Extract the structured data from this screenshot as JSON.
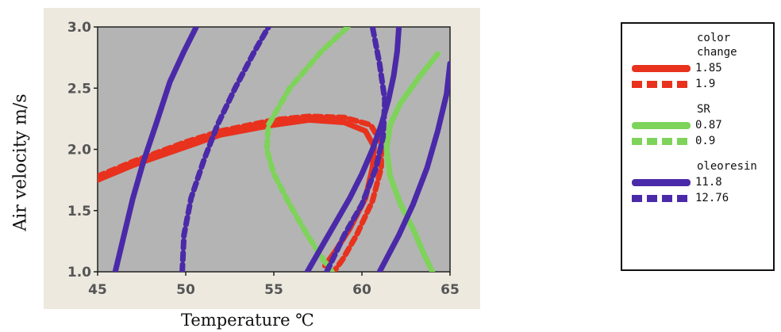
{
  "colors": {
    "plot_background": "#b4b4b4",
    "frame_background": "#ede9df",
    "color_change": "#e8321e",
    "sr": "#7ed35a",
    "oleoresin": "#4a2aa8"
  },
  "chart_data": {
    "type": "line",
    "title": "",
    "xlabel": "Temperature ℃",
    "ylabel": "Air velocity m/s",
    "xlim": [
      45,
      65
    ],
    "ylim": [
      1.0,
      3.0
    ],
    "xticks": [
      "45",
      "50",
      "55",
      "60",
      "65"
    ],
    "yticks": [
      "1.0",
      "1.5",
      "2.0",
      "2.5",
      "3.0"
    ],
    "grid": false,
    "legend_position": "right",
    "legend_groups": [
      {
        "title": "color change",
        "title_lines": [
          "color",
          "change"
        ]
      },
      {
        "title": "SR",
        "title_lines": [
          "SR"
        ]
      },
      {
        "title": "oleoresin",
        "title_lines": [
          "oleoresin"
        ]
      }
    ],
    "series": [
      {
        "name": "1.85",
        "group": "color change",
        "style": "solid",
        "color": "#e8321e",
        "points": [
          [
            45.0,
            1.75
          ],
          [
            47,
            1.87
          ],
          [
            50,
            2.02
          ],
          [
            52,
            2.12
          ],
          [
            55,
            2.2
          ],
          [
            57,
            2.24
          ],
          [
            59,
            2.22
          ],
          [
            60.2,
            2.15
          ],
          [
            60.7,
            2.02
          ],
          [
            60.6,
            1.85
          ],
          [
            60.2,
            1.6
          ],
          [
            59.3,
            1.35
          ],
          [
            58.5,
            1.17
          ],
          [
            57.9,
            1.05
          ]
        ]
      },
      {
        "name": "1.9",
        "group": "color change",
        "style": "dashed",
        "color": "#e8321e",
        "points": [
          [
            45.0,
            1.78
          ],
          [
            47,
            1.9
          ],
          [
            50,
            2.06
          ],
          [
            52,
            2.15
          ],
          [
            55,
            2.24
          ],
          [
            57,
            2.27
          ],
          [
            59,
            2.26
          ],
          [
            60.5,
            2.2
          ],
          [
            61.1,
            2.05
          ],
          [
            61.1,
            1.85
          ],
          [
            60.6,
            1.58
          ],
          [
            59.7,
            1.3
          ],
          [
            58.9,
            1.1
          ],
          [
            58.4,
            1.0
          ]
        ]
      },
      {
        "name": "0.87",
        "group": "SR",
        "style": "solid",
        "color": "#7ed35a",
        "points": [
          [
            64.3,
            2.78
          ],
          [
            63.3,
            2.6
          ],
          [
            62.2,
            2.38
          ],
          [
            61.6,
            2.2
          ],
          [
            61.4,
            2.0
          ],
          [
            61.6,
            1.78
          ],
          [
            62.2,
            1.55
          ],
          [
            62.9,
            1.35
          ],
          [
            63.5,
            1.15
          ],
          [
            64.0,
            1.0
          ]
        ]
      },
      {
        "name": "0.9",
        "group": "SR",
        "style": "dashed",
        "color": "#7ed35a",
        "points": [
          [
            59.2,
            3.0
          ],
          [
            57.7,
            2.8
          ],
          [
            55.9,
            2.5
          ],
          [
            54.7,
            2.2
          ],
          [
            54.6,
            2.0
          ],
          [
            55.0,
            1.8
          ],
          [
            55.9,
            1.55
          ],
          [
            56.9,
            1.3
          ],
          [
            57.8,
            1.1
          ],
          [
            58.3,
            1.0
          ]
        ]
      },
      {
        "name": "11.8",
        "group": "oleoresin",
        "style": "solid",
        "color": "#4a2aa8",
        "points": [
          [
            46.0,
            1.0
          ],
          [
            46.5,
            1.3
          ],
          [
            47.0,
            1.6
          ],
          [
            47.6,
            1.9
          ],
          [
            48.3,
            2.2
          ],
          [
            49.1,
            2.55
          ],
          [
            49.9,
            2.8
          ],
          [
            50.6,
            3.0
          ]
        ]
      },
      {
        "name": "11.8",
        "group": "oleoresin",
        "style": "solid",
        "color": "#4a2aa8",
        "points": [
          [
            56.9,
            1.0
          ],
          [
            57.7,
            1.2
          ],
          [
            58.5,
            1.4
          ],
          [
            59.3,
            1.6
          ],
          [
            60.0,
            1.8
          ],
          [
            60.6,
            2.0
          ],
          [
            61.1,
            2.2
          ],
          [
            61.5,
            2.4
          ],
          [
            61.8,
            2.6
          ],
          [
            62.0,
            2.8
          ],
          [
            62.1,
            3.0
          ]
        ]
      },
      {
        "name": "11.8",
        "group": "oleoresin",
        "style": "solid",
        "color": "#4a2aa8",
        "points": [
          [
            61.0,
            1.0
          ],
          [
            62.1,
            1.3
          ],
          [
            62.9,
            1.55
          ],
          [
            63.7,
            1.85
          ],
          [
            64.3,
            2.15
          ],
          [
            64.8,
            2.45
          ],
          [
            65.0,
            2.7
          ]
        ]
      },
      {
        "name": "12.76",
        "group": "oleoresin",
        "style": "dashed",
        "color": "#4a2aa8",
        "points": [
          [
            49.8,
            1.0
          ],
          [
            49.9,
            1.3
          ],
          [
            50.3,
            1.6
          ],
          [
            51.0,
            1.9
          ],
          [
            51.8,
            2.2
          ],
          [
            52.8,
            2.5
          ],
          [
            53.9,
            2.8
          ],
          [
            54.7,
            3.0
          ]
        ]
      },
      {
        "name": "12.76",
        "group": "oleoresin",
        "style": "dashed",
        "color": "#4a2aa8",
        "points": [
          [
            58.0,
            1.0
          ],
          [
            59.0,
            1.3
          ],
          [
            60.0,
            1.55
          ],
          [
            60.8,
            1.85
          ],
          [
            61.2,
            2.1
          ],
          [
            61.3,
            2.4
          ],
          [
            61.0,
            2.7
          ],
          [
            60.6,
            3.0
          ]
        ]
      }
    ],
    "legend_items": [
      {
        "label": "1.85",
        "group": "color change",
        "style": "solid",
        "color": "#e8321e"
      },
      {
        "label": "1.9",
        "group": "color change",
        "style": "dashed",
        "color": "#e8321e"
      },
      {
        "label": "0.87",
        "group": "SR",
        "style": "solid",
        "color": "#7ed35a"
      },
      {
        "label": "0.9",
        "group": "SR",
        "style": "dashed",
        "color": "#7ed35a"
      },
      {
        "label": "11.8",
        "group": "oleoresin",
        "style": "solid",
        "color": "#4a2aa8"
      },
      {
        "label": "12.76",
        "group": "oleoresin",
        "style": "dashed",
        "color": "#4a2aa8"
      }
    ]
  }
}
